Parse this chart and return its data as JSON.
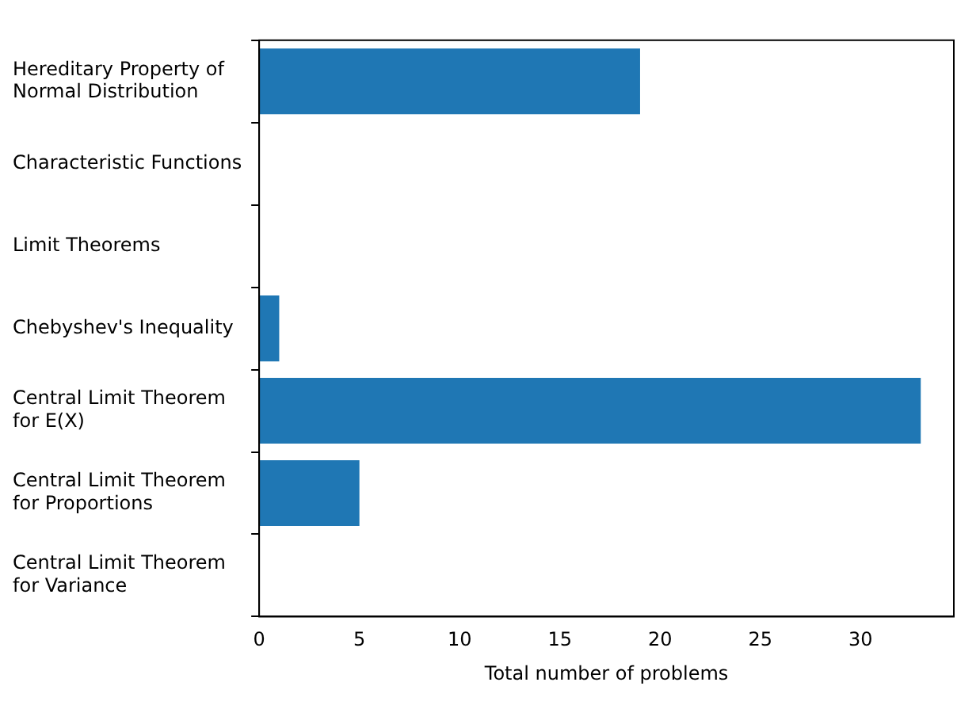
{
  "chart_data": {
    "type": "bar",
    "orientation": "horizontal",
    "xlabel": "Total number of problems",
    "categories": [
      "Hereditary Property of\nNormal Distribution",
      "Characteristic Functions",
      "Limit Theorems",
      "Chebyshev's Inequality",
      "Central Limit Theorem\nfor E(X)",
      "Central Limit Theorem\nfor Proportions",
      "Central Limit Theorem\nfor Variance"
    ],
    "values": [
      19,
      0,
      0,
      1,
      33,
      5,
      0
    ],
    "color": "#1f77b4",
    "xlim": [
      0,
      34.65
    ],
    "xticks": [
      0,
      5,
      10,
      15,
      20,
      25,
      30
    ],
    "grid": false,
    "legend": false
  }
}
